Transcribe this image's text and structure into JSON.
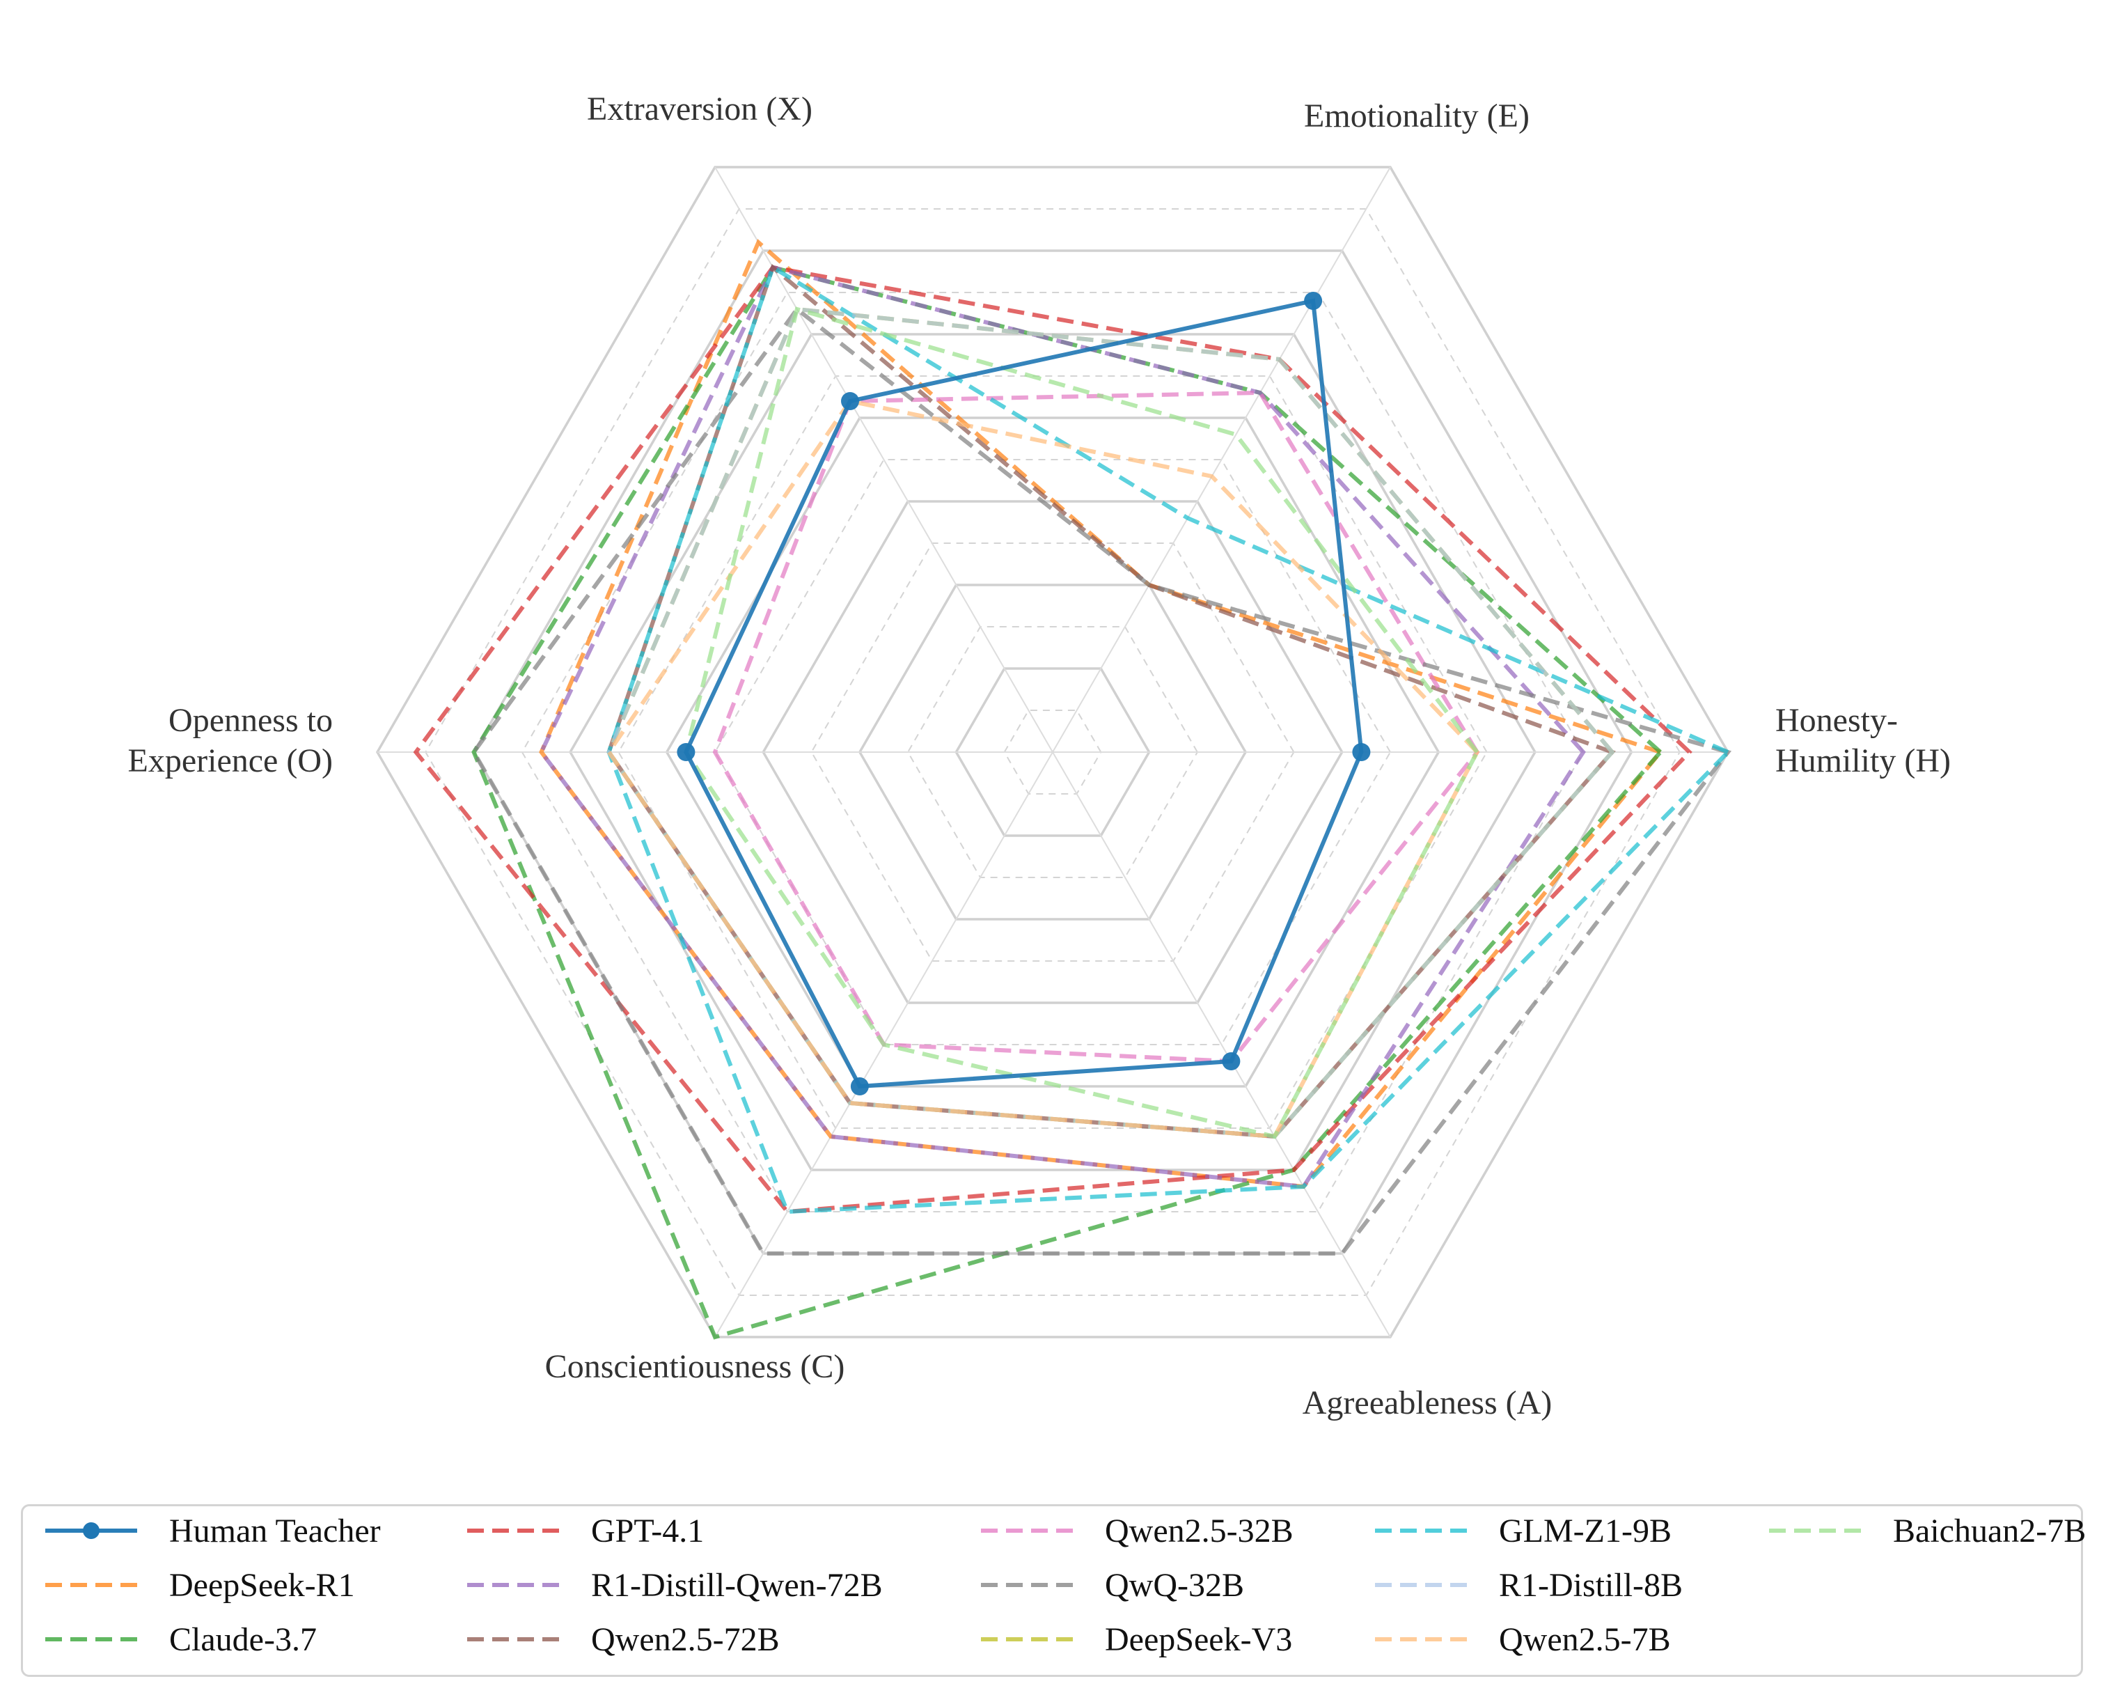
{
  "chart_data": {
    "type": "radar",
    "axes": [
      {
        "key": "H",
        "label": "Honesty-\nHumility (H)"
      },
      {
        "key": "E",
        "label": "Emotionality (E)"
      },
      {
        "key": "X",
        "label": "Extraversion (X)"
      },
      {
        "key": "O",
        "label": "Openness to\nExperience (O)"
      },
      {
        "key": "C",
        "label": "Conscientiousness (C)"
      },
      {
        "key": "A",
        "label": "Agreeableness (A)"
      }
    ],
    "range": [
      0,
      7
    ],
    "grid_rings": 14,
    "grid": true,
    "legend_placement": "bottom",
    "series": [
      {
        "name": "Human Teacher",
        "color": "#1f77b4",
        "style": "solid-marker",
        "values": [
          3.2,
          5.4,
          4.2,
          3.8,
          4.0,
          3.7
        ]
      },
      {
        "name": "DeepSeek-R1",
        "color": "#ff7f0e",
        "style": "dashed",
        "values": [
          6.3,
          2.0,
          6.1,
          5.3,
          4.6,
          5.2
        ]
      },
      {
        "name": "Claude-3.7",
        "color": "#2ca02c",
        "style": "dashed",
        "values": [
          6.3,
          4.3,
          5.8,
          6.0,
          7.0,
          5.0
        ]
      },
      {
        "name": "GPT-4.1",
        "color": "#d62728",
        "style": "dashed",
        "values": [
          6.6,
          4.7,
          5.8,
          6.6,
          5.5,
          5.0
        ]
      },
      {
        "name": "R1-Distill-Qwen-72B",
        "color": "#9467bd",
        "style": "dashed",
        "values": [
          5.5,
          4.3,
          5.8,
          5.3,
          4.6,
          5.2
        ]
      },
      {
        "name": "Qwen2.5-72B",
        "color": "#8c564b",
        "style": "dashed",
        "values": [
          5.8,
          2.0,
          5.8,
          4.6,
          4.2,
          4.6
        ]
      },
      {
        "name": "Qwen2.5-32B",
        "color": "#e377c2",
        "style": "dashed",
        "values": [
          4.4,
          4.3,
          4.2,
          3.5,
          3.5,
          3.7
        ]
      },
      {
        "name": "QwQ-32B",
        "color": "#7f7f7f",
        "style": "dashed",
        "values": [
          7.0,
          2.0,
          5.3,
          6.0,
          6.0,
          6.0
        ]
      },
      {
        "name": "DeepSeek-V3",
        "color": "#bcbd22",
        "style": "dashed",
        "values": [
          5.8,
          4.7,
          5.3,
          4.6,
          4.2,
          4.6
        ]
      },
      {
        "name": "GLM-Z1-9B",
        "color": "#17becf",
        "style": "dashed",
        "values": [
          7.0,
          2.8,
          5.8,
          4.6,
          5.5,
          5.2
        ]
      },
      {
        "name": "R1-Distill-8B",
        "color": "#aec7e8",
        "style": "dashed",
        "values": [
          5.8,
          4.7,
          5.3,
          4.6,
          4.2,
          4.6
        ]
      },
      {
        "name": "Qwen2.5-7B",
        "color": "#ffbb78",
        "style": "dashed",
        "values": [
          4.4,
          3.3,
          4.2,
          4.6,
          4.2,
          4.6
        ]
      },
      {
        "name": "Baichuan2-7B",
        "color": "#98df8a",
        "style": "dashed",
        "values": [
          4.4,
          3.8,
          5.3,
          3.8,
          3.5,
          4.6
        ]
      }
    ]
  }
}
